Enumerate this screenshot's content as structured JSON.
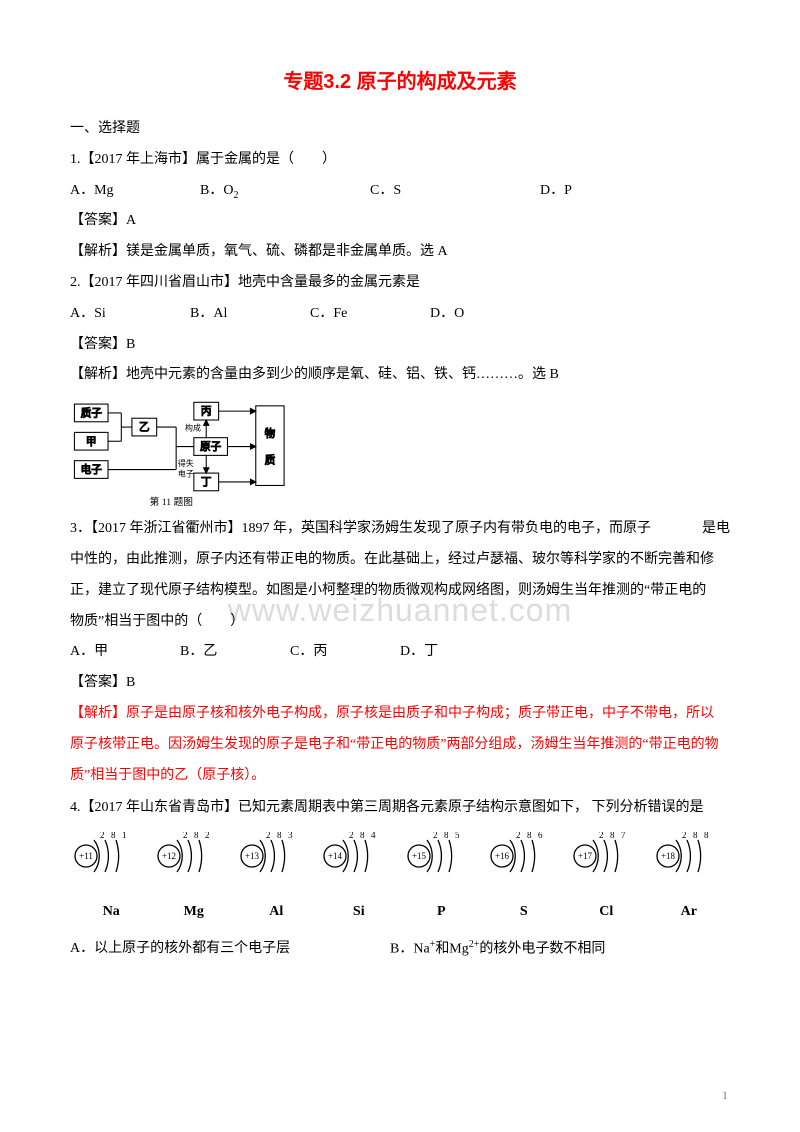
{
  "title": "专题3.2 原子的构成及元素",
  "section1": "一、选择题",
  "q1": {
    "stem": "1.【2017 年上海市】属于金属的是（　　）",
    "A": "A．Mg",
    "B": "B．O",
    "C": "C．S",
    "D": "D．P",
    "ans": "【答案】A",
    "exp": "【解析】镁是金属单质，氧气、硫、磷都是非金属单质。选 A"
  },
  "q2": {
    "stem": "2.【2017 年四川省眉山市】地壳中含量最多的金属元素是",
    "A": "A．Si",
    "B": "B．Al",
    "C": "C．Fe",
    "D": "D．O",
    "ans": "【答案】B",
    "exp": "【解析】地壳中元素的含量由多到少的顺序是氧、硅、铝、铁、钙………。选 B"
  },
  "diagram": {
    "proton": "质子",
    "jia": "甲",
    "electron": "电子",
    "yi": "乙",
    "bing": "丙",
    "atom": "原子",
    "ding": "丁",
    "matter": "物",
    "matter2": "质",
    "compose": "构成",
    "lose": "得失",
    "elabel": "电子",
    "cap": "第 11 题图"
  },
  "q3": {
    "stem_a": "3．【2017 年浙江省衢州市】1897 年，英国科学家汤姆生发现了原子内有带负电的电子，而原子",
    "stem_b": "是电",
    "stem2": "中性的，由此推测，原子内还有带正电的物质。在此基础上，经过卢瑟福、玻尔等科学家的不断完善和修",
    "stem3": "正，建立了现代原子结构模型。如图是小柯整理的物质微观构成网络图，则汤姆生当年推测的“带正电的",
    "stem4": "物质”相当于图中的（　　）",
    "A": "A．甲",
    "B": "B．乙",
    "C": "C．丙",
    "D": "D．丁",
    "ans": "【答案】B",
    "exp1": "【解析】原子是由原子核和核外电子构成，原子核是由质子和中子构成；质子带正电，中子不带电，所以",
    "exp2": "原子核带正电。因汤姆生发现的原子是电子和“带正电的物质”两部分组成，汤姆生当年推测的“带正电的物",
    "exp3": "质”相当于图中的乙（原子核）。"
  },
  "q4": {
    "stem": "4.【2017 年山东省青岛市】已知元素周期表中第三周期各元素原子结构示意图如下， 下列分析错误的是",
    "labels": [
      "Na",
      "Mg",
      "Al",
      "Si",
      "P",
      "S",
      "Cl",
      "Ar"
    ],
    "atoms": [
      {
        "z": "+11",
        "shells": [
          "2",
          "8",
          "1"
        ]
      },
      {
        "z": "+12",
        "shells": [
          "2",
          "8",
          "2"
        ]
      },
      {
        "z": "+13",
        "shells": [
          "2",
          "8",
          "3"
        ]
      },
      {
        "z": "+14",
        "shells": [
          "2",
          "8",
          "4"
        ]
      },
      {
        "z": "+15",
        "shells": [
          "2",
          "8",
          "5"
        ]
      },
      {
        "z": "+16",
        "shells": [
          "2",
          "8",
          "6"
        ]
      },
      {
        "z": "+17",
        "shells": [
          "2",
          "8",
          "7"
        ]
      },
      {
        "z": "+18",
        "shells": [
          "2",
          "8",
          "8"
        ]
      }
    ],
    "A": "A．以上原子的核外都有三个电子层",
    "B": "B．Na⁺和Mg²⁺的核外电子数不相同"
  },
  "watermark": "www.weizhuannet.com",
  "pageNum": "1"
}
